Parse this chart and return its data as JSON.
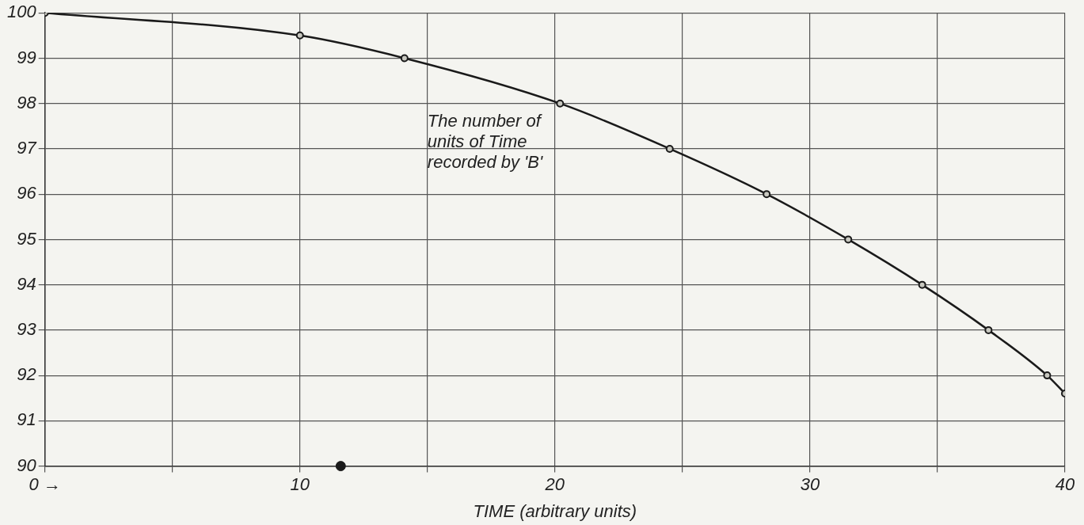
{
  "chart_data": {
    "type": "line",
    "xlabel": "TIME (arbitrary units)",
    "series": [
      {
        "color": "#1a1a1a",
        "x": [
          0,
          10,
          14.1,
          20.2,
          24.5,
          28.3,
          31.5,
          34.4,
          37.0,
          39.3,
          40
        ],
        "values": [
          100,
          99.5,
          99,
          98,
          97,
          96,
          95,
          94,
          93,
          92,
          91.6
        ]
      },
      {
        "type": "scatter",
        "color": "#1a1a1a",
        "x": [
          11.6
        ],
        "values": [
          90
        ]
      }
    ],
    "xlim": [
      0,
      40
    ],
    "xticks": [
      {
        "value": 0,
        "label": "0 →"
      },
      {
        "value": 5,
        "label": null
      },
      10,
      {
        "value": 15,
        "label": null
      },
      20,
      {
        "value": 25,
        "label": null
      },
      30,
      {
        "value": 35,
        "label": null
      },
      40
    ],
    "ylim": [
      90,
      100
    ],
    "yticks": [
      90,
      91,
      92,
      93,
      94,
      95,
      96,
      97,
      98,
      99,
      100
    ],
    "grid": true,
    "marker": "circle",
    "legend": false,
    "annotations": [
      "The number of units of Time recorded by 'B'"
    ]
  }
}
